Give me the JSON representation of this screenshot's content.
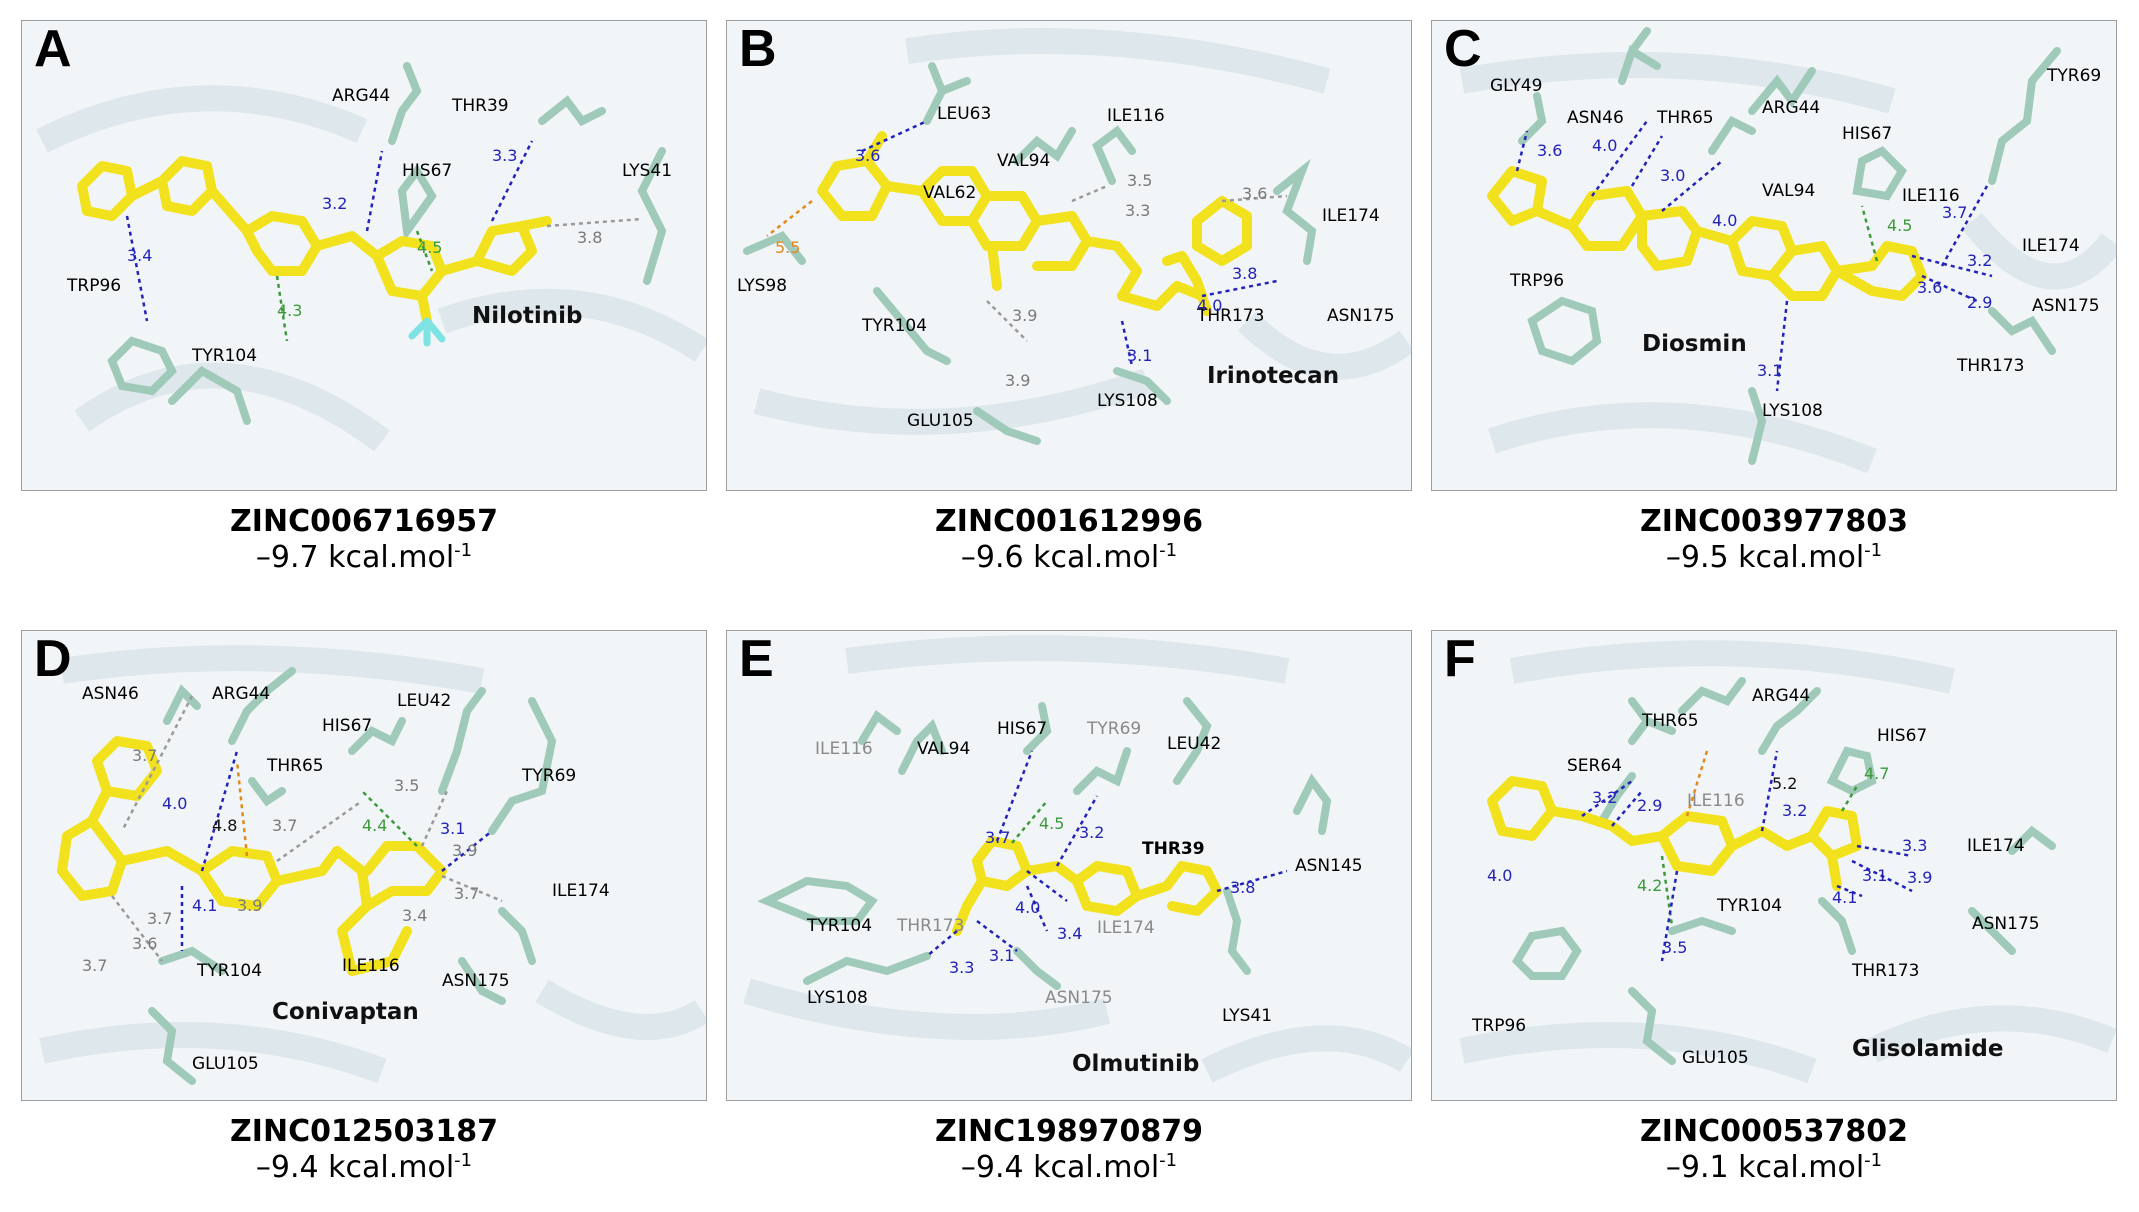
{
  "energy_unit": "kcal.mol",
  "energy_exp": "-1",
  "panels": [
    {
      "letter": "A",
      "zinc": "ZINC006716957",
      "energy": "–9.7",
      "drug": "Nilotinib",
      "residues": [
        "ARG44",
        "THR39",
        "LYS41",
        "HIS67",
        "TRP96",
        "TYR104"
      ],
      "distances": [
        "3.2",
        "3.3",
        "3.8",
        "4.5",
        "3.4",
        "4.3"
      ]
    },
    {
      "letter": "B",
      "zinc": "ZINC001612996",
      "energy": "–9.6",
      "drug": "Irinotecan",
      "residues": [
        "LEU63",
        "VAL94",
        "ILE116",
        "VAL62",
        "ILE174",
        "LYS98",
        "TYR104",
        "THR173",
        "ASN175",
        "GLU105",
        "LYS108"
      ],
      "distances": [
        "3.6",
        "3.5",
        "3.3",
        "3.6",
        "5.5",
        "3.8",
        "4.0",
        "3.1",
        "3.9",
        "3.9"
      ]
    },
    {
      "letter": "C",
      "zinc": "ZINC003977803",
      "energy": "–9.5",
      "drug": "Diosmin",
      "residues": [
        "GLY49",
        "ASN46",
        "THR65",
        "ARG44",
        "TYR69",
        "HIS67",
        "VAL94",
        "ILE116",
        "ILE174",
        "TRP96",
        "ASN175",
        "THR173",
        "LYS108"
      ],
      "distances": [
        "3.6",
        "4.0",
        "3.0",
        "4.0",
        "4.5",
        "3.7",
        "3.2",
        "3.6",
        "2.9",
        "3.1"
      ]
    },
    {
      "letter": "D",
      "zinc": "ZINC012503187",
      "energy": "–9.4",
      "drug": "Conivaptan",
      "residues": [
        "ASN46",
        "ARG44",
        "HIS67",
        "LEU42",
        "THR65",
        "TYR69",
        "ILE174",
        "TYR104",
        "ILE116",
        "ASN175",
        "GLU105"
      ],
      "distances": [
        "3.7",
        "4.0",
        "4.8",
        "3.7",
        "4.4",
        "3.5",
        "3.1",
        "3.9",
        "3.7",
        "4.1",
        "3.9",
        "3.7",
        "3.6",
        "3.7",
        "3.4"
      ]
    },
    {
      "letter": "E",
      "zinc": "ZINC198970879",
      "energy": "–9.4",
      "drug": "Olmutinib",
      "residues": [
        "ILE116",
        "VAL94",
        "HIS67",
        "TYR69",
        "LEU42",
        "THR39",
        "ASN145",
        "TYR104",
        "THR173",
        "ILE174",
        "LYS108",
        "ASN175",
        "LYS41"
      ],
      "distances": [
        "3.7",
        "4.5",
        "3.2",
        "3.8",
        "4.0",
        "3.4",
        "3.3",
        "3.1"
      ]
    },
    {
      "letter": "F",
      "zinc": "ZINC000537802",
      "energy": "–9.1",
      "drug": "Glisolamide",
      "residues": [
        "THR65",
        "ARG44",
        "HIS67",
        "SER64",
        "ILE116",
        "ILE174",
        "TYR104",
        "TRP96",
        "ASN175",
        "THR173",
        "GLU105"
      ],
      "distances": [
        "3.2",
        "2.9",
        "5.2",
        "4.7",
        "3.2",
        "3.3",
        "4.0",
        "4.2",
        "3.1",
        "3.9",
        "4.1",
        "3.5"
      ]
    }
  ],
  "colors": {
    "ligand": "#f2e21d",
    "ligand_edge": "#a99b00",
    "residue": "#9fc9b8",
    "residue_edge": "#6e9c8a",
    "nitrogen": "#2b36d6",
    "oxygen": "#e02424",
    "fluorine": "#7fe3e3",
    "hbond": "#2323b8",
    "hydrophobic": "#9a9a9a",
    "pi_stack": "#3c9a3c",
    "cation": "#e08a1e"
  }
}
